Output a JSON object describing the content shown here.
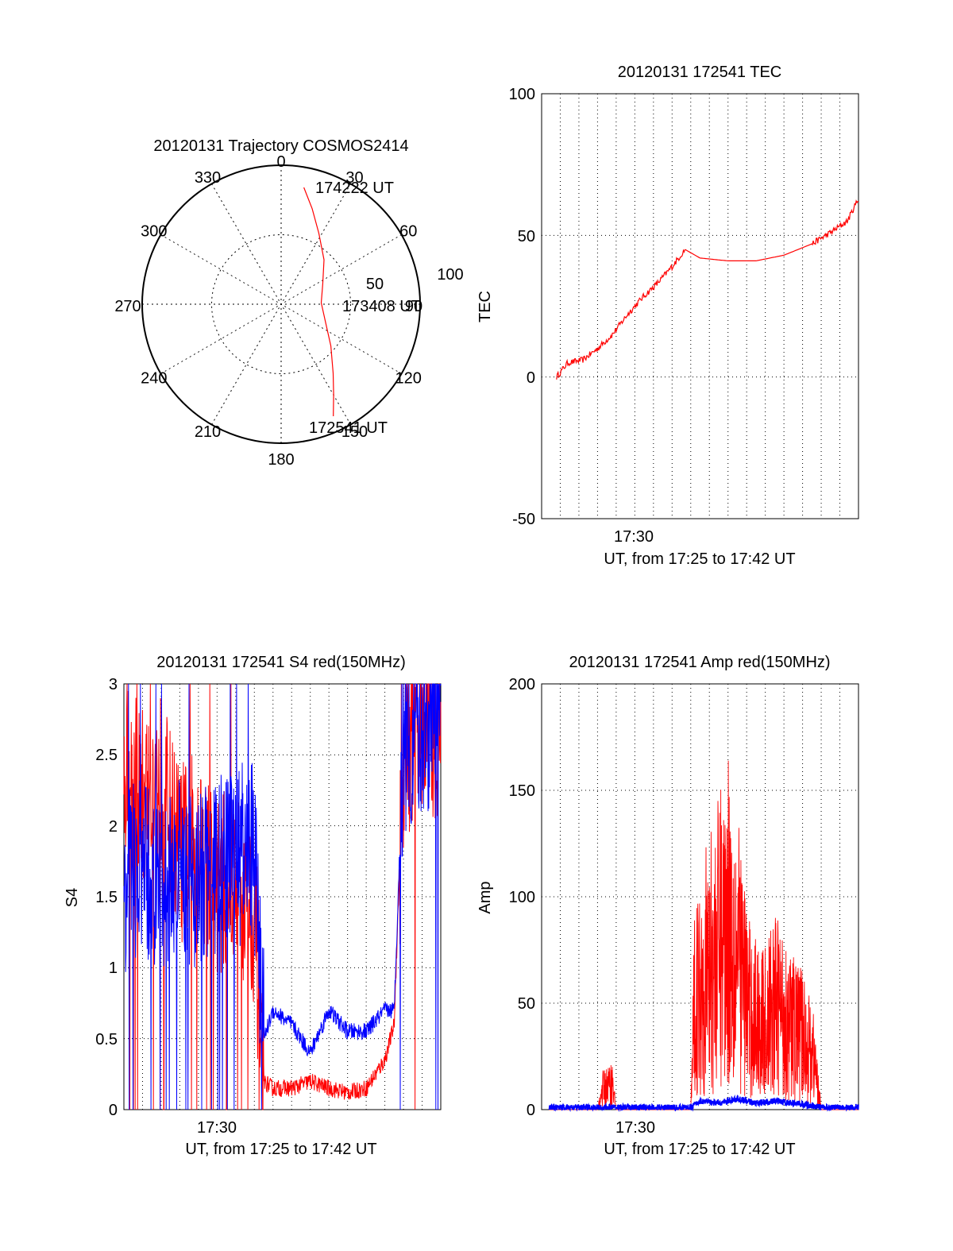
{
  "colors": {
    "red": "#ff0000",
    "blue": "#0000ff",
    "axis": "#000000",
    "grid": "#000000"
  },
  "chart_data": [
    {
      "type": "polar",
      "title": "20120131 Trajectory COSMOS2414",
      "azimuth_labels": [
        "0",
        "30",
        "60",
        "90",
        "120",
        "150",
        "180",
        "210",
        "240",
        "270",
        "300",
        "330"
      ],
      "radial_labels": [
        "50",
        "100"
      ],
      "trajectory_labels": {
        "end": "174222 UT",
        "mid": "173408 UT",
        "start": "172541 UT"
      },
      "trajectory": [
        {
          "az": 11,
          "el": 13
        },
        {
          "az": 18,
          "el": 25
        },
        {
          "az": 28,
          "el": 38
        },
        {
          "az": 44,
          "el": 50
        },
        {
          "az": 64,
          "el": 60
        },
        {
          "az": 88,
          "el": 64
        },
        {
          "az": 112,
          "el": 59
        },
        {
          "az": 130,
          "el": 48
        },
        {
          "az": 143,
          "el": 34
        },
        {
          "az": 150,
          "el": 22
        },
        {
          "az": 155,
          "el": 10
        }
      ]
    },
    {
      "type": "line",
      "title": "20120131 172541 TEC",
      "xlabel": "UT, from 17:25 to 17:42 UT",
      "ylabel": "TEC",
      "x_tick_labels": [
        "17:30"
      ],
      "y_tick_labels": [
        "100",
        "50",
        "0",
        "-50"
      ],
      "xlim": [
        0,
        17
      ],
      "ylim": [
        -50,
        100
      ],
      "grid": true,
      "series": [
        {
          "color": "red",
          "x": [
            0.8,
            1.4,
            2.2,
            3.0,
            3.8,
            4.6,
            5.4,
            6.2,
            7.0,
            7.7,
            8.5,
            10.0,
            11.5,
            13.0,
            14.5,
            15.5,
            16.4,
            17.0
          ],
          "y": [
            0,
            5,
            6,
            10,
            15,
            22,
            28,
            33,
            39,
            45,
            42,
            41,
            41,
            43,
            47,
            51,
            55,
            63
          ]
        }
      ]
    },
    {
      "type": "line",
      "title": "20120131 172541 S4 red(150MHz)",
      "xlabel": "UT, from 17:25 to 17:42 UT",
      "ylabel": "S4",
      "x_tick_labels": [
        "17:30"
      ],
      "y_tick_labels": [
        "3",
        "2.5",
        "2",
        "1.5",
        "1",
        "0.5",
        "0"
      ],
      "xlim": [
        0,
        17
      ],
      "ylim": [
        0,
        3
      ],
      "grid": true,
      "series": [
        {
          "color": "red",
          "x": [
            0,
            1,
            2,
            3,
            4,
            5,
            6,
            7,
            7.5,
            8,
            9,
            10,
            11,
            12,
            13,
            14,
            14.5,
            15,
            16,
            17
          ],
          "y": [
            2.4,
            2.2,
            2.3,
            1.8,
            1.9,
            1.6,
            1.6,
            1.4,
            0.2,
            0.15,
            0.15,
            0.2,
            0.15,
            0.12,
            0.15,
            0.35,
            0.6,
            2.5,
            2.8,
            2.6
          ]
        },
        {
          "color": "blue",
          "x": [
            0,
            1,
            2,
            3,
            4,
            5,
            6,
            7,
            7.5,
            8,
            9,
            10,
            11,
            12,
            13,
            14,
            14.5,
            15,
            16,
            17
          ],
          "y": [
            1.6,
            1.7,
            1.5,
            1.7,
            1.6,
            1.7,
            1.8,
            1.8,
            0.5,
            0.7,
            0.6,
            0.4,
            0.7,
            0.55,
            0.55,
            0.7,
            0.7,
            2.6,
            2.7,
            2.8
          ]
        }
      ]
    },
    {
      "type": "line",
      "title": "20120131 172541 Amp red(150MHz)",
      "xlabel": "UT, from 17:25 to 17:42 UT",
      "ylabel": "Amp",
      "x_tick_labels": [
        "17:30"
      ],
      "y_tick_labels": [
        "200",
        "150",
        "100",
        "50",
        "0"
      ],
      "xlim": [
        0,
        17
      ],
      "ylim": [
        0,
        200
      ],
      "grid": true,
      "series": [
        {
          "color": "red",
          "x": [
            0,
            3.0,
            3.3,
            3.8,
            4.0,
            8.0,
            8.2,
            8.8,
            9.4,
            10.0,
            10.6,
            11.2,
            12.0,
            12.6,
            13.2,
            14.0,
            14.6,
            15.0,
            17.0
          ],
          "y": [
            0,
            0,
            10,
            12,
            0,
            0,
            50,
            65,
            75,
            90,
            70,
            45,
            40,
            50,
            40,
            35,
            25,
            0,
            0
          ]
        },
        {
          "color": "blue",
          "x": [
            0,
            8.0,
            8.5,
            9.5,
            10.5,
            11.5,
            12.5,
            13.5,
            14.5,
            15.0,
            17.0
          ],
          "y": [
            1,
            1,
            4,
            3,
            5,
            3,
            4,
            3,
            2,
            1,
            1
          ]
        }
      ]
    }
  ]
}
